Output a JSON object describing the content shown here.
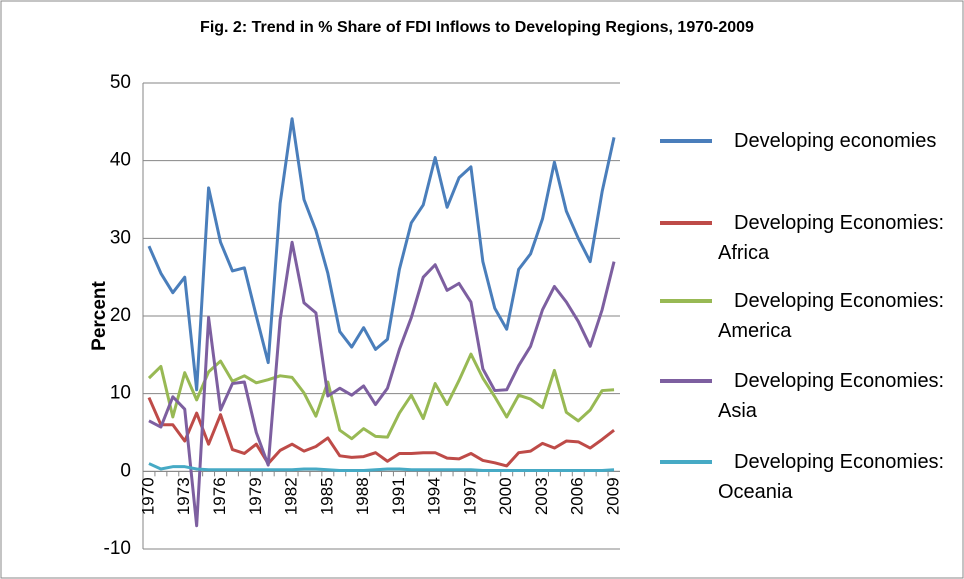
{
  "chart_data": {
    "type": "line",
    "title": "Fig. 2: Trend in % Share of FDI Inflows to Developing Regions, 1970-2009",
    "y_label": "Percent",
    "categories": [
      "1970",
      null,
      null,
      "1973",
      null,
      null,
      "1976",
      null,
      null,
      "1979",
      null,
      null,
      "1982",
      null,
      null,
      "1985",
      null,
      null,
      "1988",
      null,
      null,
      "1991",
      null,
      null,
      "1994",
      null,
      null,
      "1997",
      null,
      null,
      "2000",
      null,
      null,
      "2003",
      null,
      null,
      "2006",
      null,
      null,
      "2009"
    ],
    "ylim": [
      -10,
      50
    ],
    "yticks": [
      -10,
      0,
      10,
      20,
      30,
      40,
      50
    ],
    "grid": true,
    "legend": "right",
    "series": [
      {
        "name": "Developing economies",
        "color": "#4a7ebb",
        "values": [
          29,
          25.5,
          23,
          25,
          10.5,
          36.5,
          29.5,
          25.8,
          26.2,
          20,
          14,
          34.5,
          45.4,
          35,
          31,
          25.5,
          18,
          16,
          18.5,
          15.7,
          17,
          26,
          32,
          34.3,
          40.4,
          34,
          37.8,
          39.2,
          27,
          21,
          18.3,
          26,
          28,
          32.5,
          39.8,
          33.5,
          30,
          27,
          36,
          43
        ]
      },
      {
        "name": "Developing Economies: Africa",
        "color": "#be4b48",
        "values": [
          9.5,
          6,
          6,
          3.9,
          7.5,
          3.5,
          7.3,
          2.8,
          2.3,
          3.5,
          1,
          2.7,
          3.5,
          2.6,
          3.2,
          4.3,
          2,
          1.8,
          1.9,
          2.4,
          1.3,
          2.3,
          2.3,
          2.4,
          2.4,
          1.7,
          1.6,
          2.3,
          1.4,
          1.1,
          0.7,
          2.4,
          2.6,
          3.6,
          3,
          3.9,
          3.8,
          3,
          4.1,
          5.3
        ]
      },
      {
        "name": "Developing Economies: America",
        "color": "#98b954",
        "values": [
          12,
          13.5,
          7,
          12.7,
          9.2,
          12.8,
          14.2,
          11.6,
          12.3,
          11.4,
          11.8,
          12.3,
          12.1,
          10.1,
          7.1,
          11.5,
          5.3,
          4.2,
          5.5,
          4.5,
          4.4,
          7.5,
          9.8,
          6.8,
          11.3,
          8.6,
          11.7,
          15.1,
          12,
          9.6,
          7,
          9.8,
          9.3,
          8.2,
          13,
          7.6,
          6.5,
          7.9,
          10.4,
          10.5
        ]
      },
      {
        "name": "Developing Economies: Asia",
        "color": "#7d5fa0",
        "values": [
          6.5,
          5.7,
          9.6,
          8,
          -7,
          19.8,
          7.9,
          11.3,
          11.5,
          5,
          0.8,
          19.5,
          29.5,
          21.7,
          20.4,
          9.7,
          10.7,
          9.8,
          11,
          8.6,
          10.7,
          15.7,
          19.8,
          25,
          26.6,
          23.3,
          24.2,
          21.8,
          13.2,
          10.4,
          10.5,
          13.6,
          16.1,
          20.8,
          23.8,
          21.8,
          19.3,
          16.1,
          20.8,
          27
        ]
      },
      {
        "name": "Developing Economies: Oceania",
        "color": "#46aac5",
        "values": [
          1,
          0.3,
          0.6,
          0.6,
          0.3,
          0.2,
          0.2,
          0.2,
          0.2,
          0.2,
          0.2,
          0.2,
          0.2,
          0.3,
          0.3,
          0.2,
          0.1,
          0.1,
          0.1,
          0.2,
          0.3,
          0.3,
          0.2,
          0.2,
          0.2,
          0.2,
          0.2,
          0.2,
          0.1,
          0.1,
          0.1,
          0.1,
          0.1,
          0.1,
          0.1,
          0.1,
          0.1,
          0.1,
          0.1,
          0.2
        ]
      }
    ]
  }
}
